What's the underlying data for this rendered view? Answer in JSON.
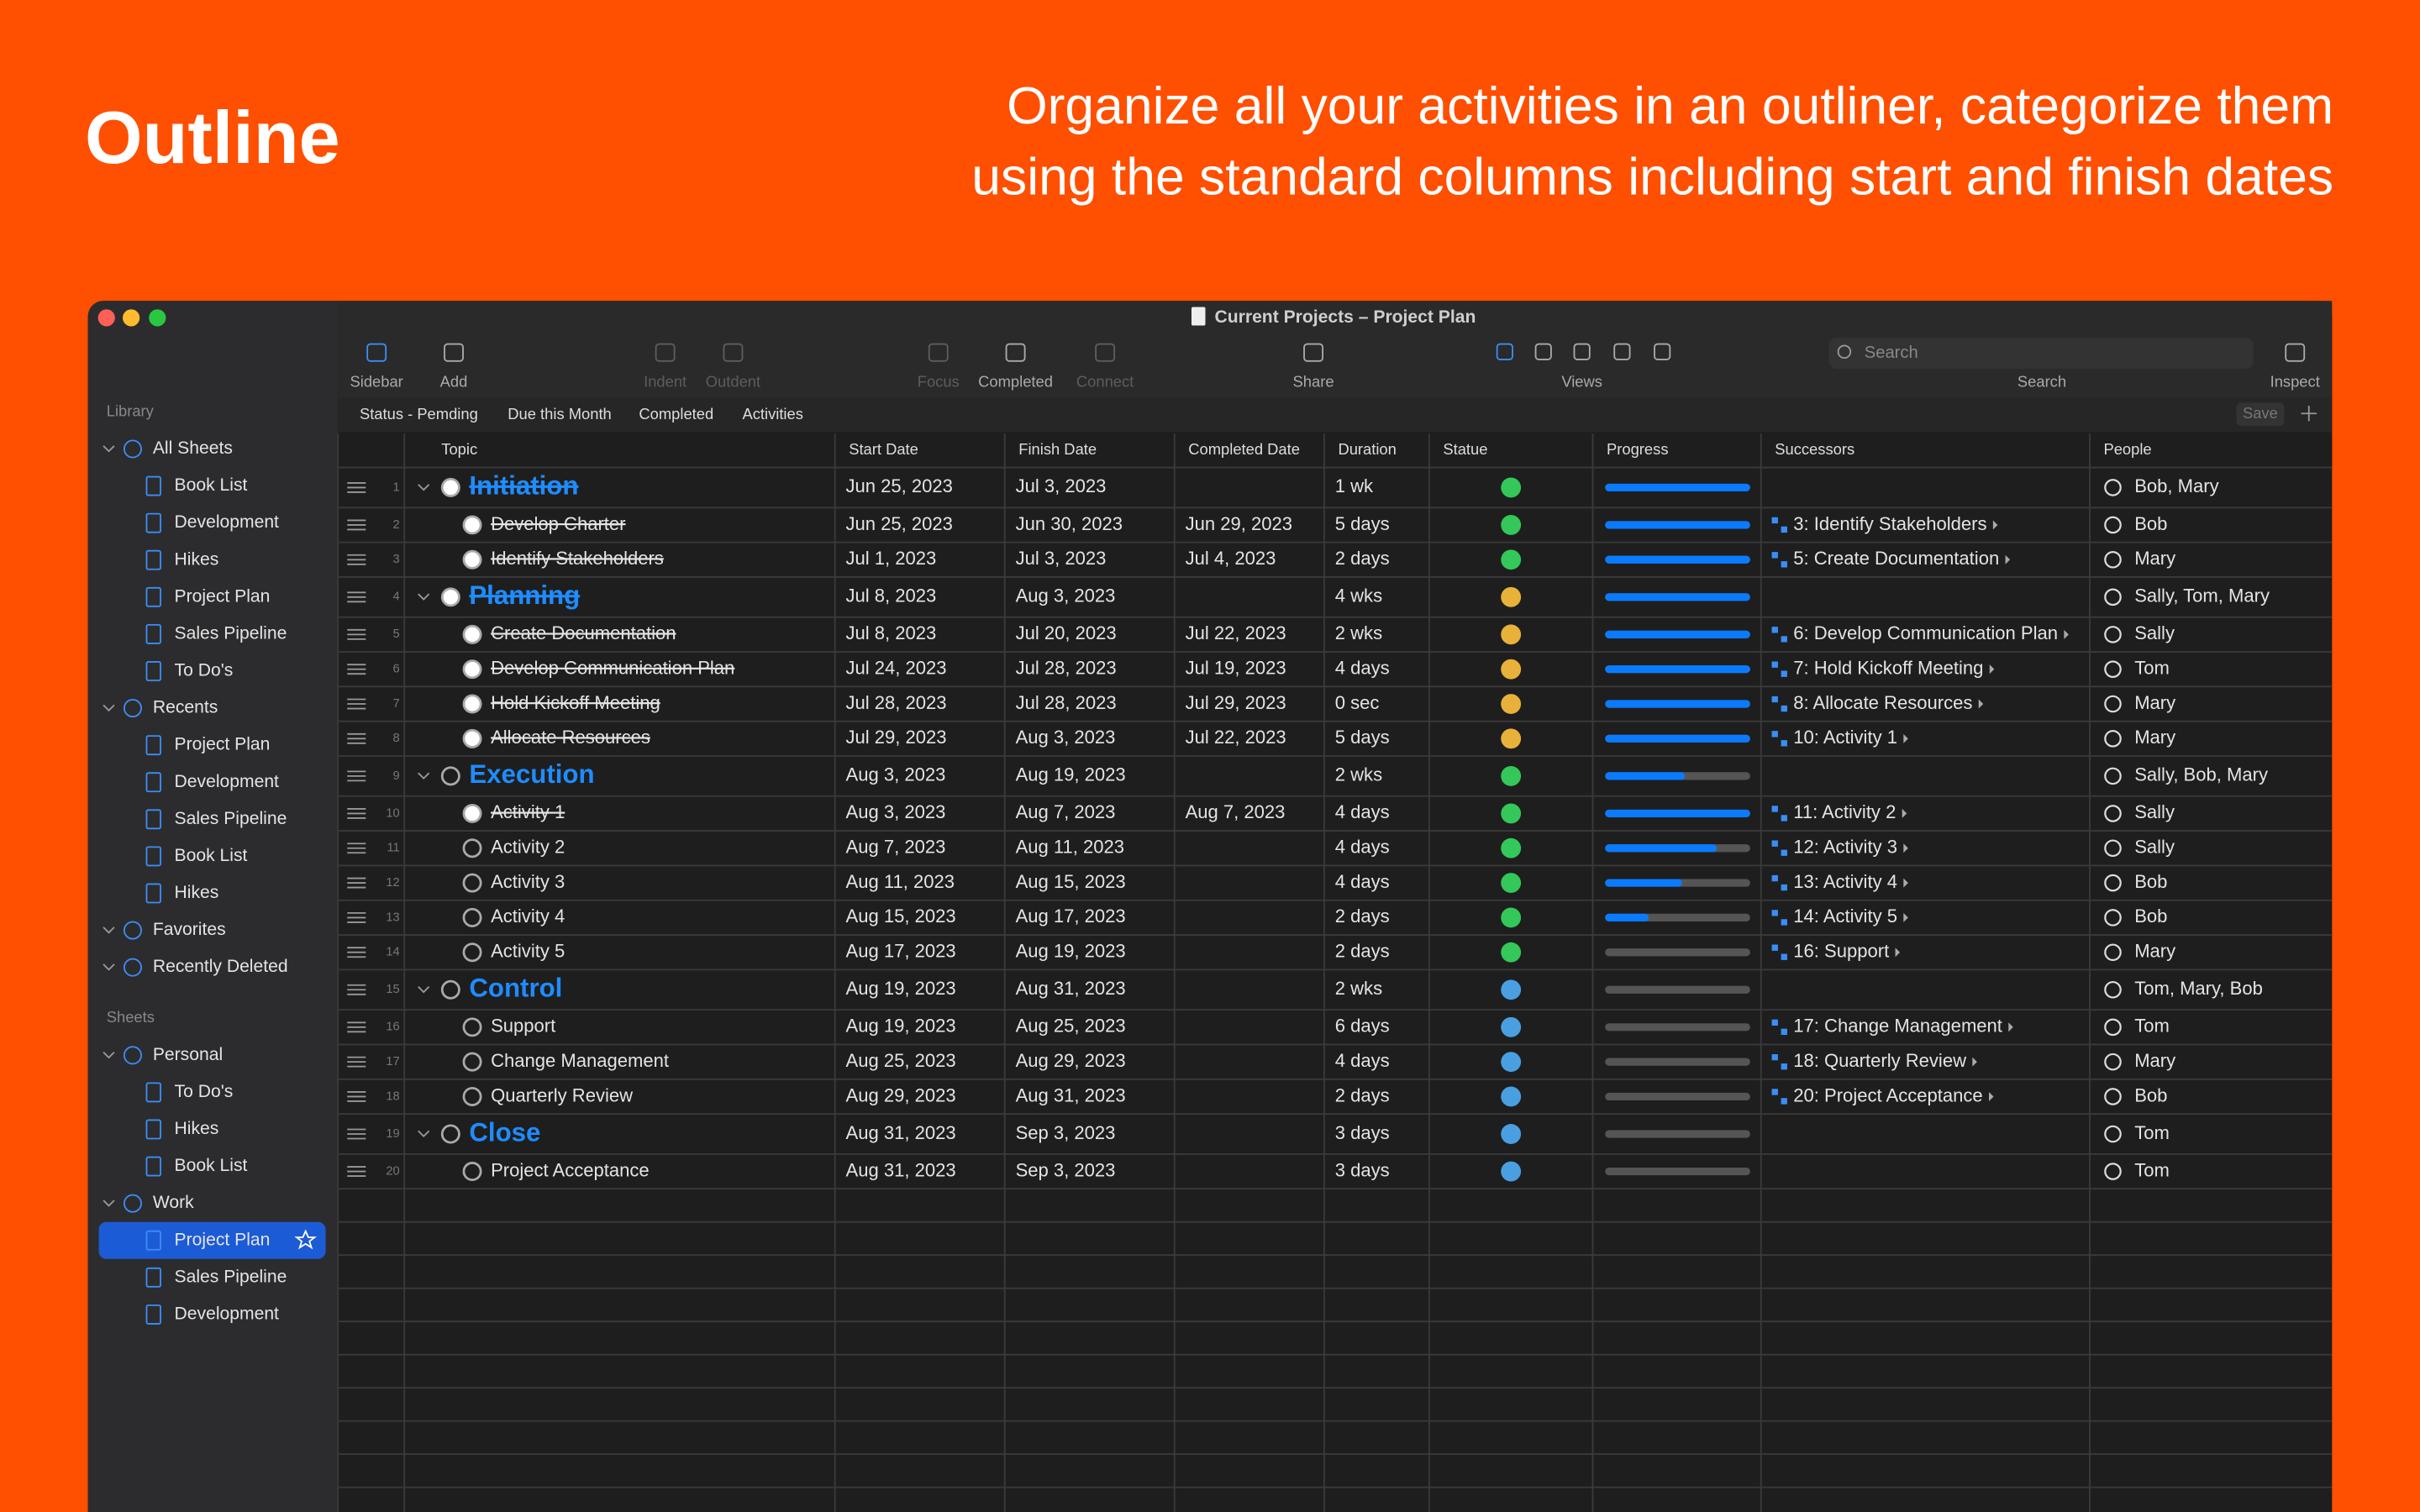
{
  "header": {
    "title": "Outline",
    "tagline": [
      "Organize all your activities in an outliner, categorize them",
      "using the standard columns including start and finish dates"
    ]
  },
  "window": {
    "title": "Current Projects – Project Plan"
  },
  "toolbar": [
    {
      "label": "Sidebar"
    },
    {
      "label": "Add"
    },
    {
      "label": "Indent",
      "disabled": true
    },
    {
      "label": "Outdent",
      "disabled": true
    },
    {
      "label": "Focus",
      "disabled": true
    },
    {
      "label": "Completed"
    },
    {
      "label": "Connect",
      "disabled": true
    },
    {
      "label": "Share"
    },
    {
      "label": "Views"
    },
    {
      "label": "Search"
    },
    {
      "label": "Inspect"
    }
  ],
  "search_placeholder": "Search",
  "filters": [
    "Status - Pemding",
    "Due this Month",
    "Completed",
    "Activities"
  ],
  "save": "Save",
  "sidebar": {
    "library": {
      "label": "Library",
      "groups": [
        {
          "label": "All Sheets",
          "items": [
            "Book List",
            "Development",
            "Hikes",
            "Project Plan",
            "Sales Pipeline",
            "To Do's"
          ]
        },
        {
          "label": "Recents",
          "items": [
            "Project Plan",
            "Development",
            "Sales Pipeline",
            "Book List",
            "Hikes"
          ]
        },
        {
          "label": "Favorites",
          "items": []
        },
        {
          "label": "Recently Deleted",
          "items": []
        }
      ]
    },
    "sheets": {
      "label": "Sheets",
      "groups": [
        {
          "label": "Personal",
          "items": [
            "To Do's",
            "Hikes",
            "Book List"
          ]
        },
        {
          "label": "Work",
          "items": [
            "Project Plan",
            "Sales Pipeline",
            "Development"
          ],
          "selected_index": 0
        }
      ]
    }
  },
  "table": {
    "columns": [
      "Topic",
      "Start Date",
      "Finish Date",
      "Completed Date",
      "Duration",
      "Statue",
      "Progress",
      "Successors",
      "People"
    ],
    "rows": [
      {
        "num": 1,
        "group": true,
        "done": true,
        "topic": "Initiation",
        "start": "Jun 25, 2023",
        "finish": "Jul 3, 2023",
        "completed": null,
        "duration": "1 wk",
        "status": "#34c759",
        "progress": 100,
        "successor": null,
        "people": "Bob, Mary"
      },
      {
        "num": 2,
        "done": true,
        "topic": "Develop Charter",
        "start": "Jun 25, 2023",
        "finish": "Jun 30, 2023",
        "completed": "Jun 29, 2023",
        "duration": "5 days",
        "status": "#34c759",
        "progress": 100,
        "successor": "3: Identify Stakeholders",
        "people": "Bob"
      },
      {
        "num": 3,
        "done": true,
        "topic": "Identify Stakeholders",
        "start": "Jul 1, 2023",
        "finish": "Jul 3, 2023",
        "completed": "Jul 4, 2023",
        "duration": "2 days",
        "status": "#34c759",
        "progress": 100,
        "successor": "5: Create Documentation",
        "people": "Mary"
      },
      {
        "num": 4,
        "group": true,
        "done": true,
        "topic": "Planning",
        "start": "Jul 8, 2023",
        "finish": "Aug 3, 2023",
        "completed": null,
        "duration": "4 wks",
        "status": "#e8b23a",
        "progress": 100,
        "successor": null,
        "people": "Sally, Tom, Mary"
      },
      {
        "num": 5,
        "done": true,
        "topic": "Create Documentation",
        "start": "Jul 8, 2023",
        "finish": "Jul 20, 2023",
        "completed": "Jul 22, 2023",
        "duration": "2 wks",
        "status": "#e8b23a",
        "progress": 100,
        "successor": "6: Develop Communication Plan",
        "people": "Sally"
      },
      {
        "num": 6,
        "done": true,
        "topic": "Develop Communication Plan",
        "start": "Jul 24, 2023",
        "finish": "Jul 28, 2023",
        "completed": "Jul 19, 2023",
        "duration": "4 days",
        "status": "#e8b23a",
        "progress": 100,
        "successor": "7: Hold Kickoff Meeting",
        "people": "Tom"
      },
      {
        "num": 7,
        "done": true,
        "topic": "Hold Kickoff Meeting",
        "start": "Jul 28, 2023",
        "finish": "Jul 28, 2023",
        "completed": "Jul 29, 2023",
        "duration": "0 sec",
        "status": "#e8b23a",
        "progress": 100,
        "successor": "8: Allocate Resources",
        "people": "Mary"
      },
      {
        "num": 8,
        "done": true,
        "topic": "Allocate Resources",
        "start": "Jul 29, 2023",
        "finish": "Aug 3, 2023",
        "completed": "Jul 22, 2023",
        "duration": "5 days",
        "status": "#e8b23a",
        "progress": 100,
        "successor": "10: Activity 1",
        "people": "Mary"
      },
      {
        "num": 9,
        "group": true,
        "topic": "Execution",
        "start": "Aug 3, 2023",
        "finish": "Aug 19, 2023",
        "completed": null,
        "duration": "2 wks",
        "status": "#34c759",
        "progress": 55,
        "successor": null,
        "people": "Sally, Bob, Mary"
      },
      {
        "num": 10,
        "done": true,
        "topic": "Activity 1",
        "start": "Aug 3, 2023",
        "finish": "Aug 7, 2023",
        "completed": "Aug 7, 2023",
        "duration": "4 days",
        "status": "#34c759",
        "progress": 100,
        "successor": "11: Activity 2",
        "people": "Sally"
      },
      {
        "num": 11,
        "topic": "Activity 2",
        "start": "Aug 7, 2023",
        "finish": "Aug 11, 2023",
        "completed": null,
        "duration": "4 days",
        "status": "#34c759",
        "progress": 77,
        "successor": "12: Activity 3",
        "people": "Sally"
      },
      {
        "num": 12,
        "topic": "Activity 3",
        "start": "Aug 11, 2023",
        "finish": "Aug 15, 2023",
        "completed": null,
        "duration": "4 days",
        "status": "#34c759",
        "progress": 53,
        "successor": "13: Activity 4",
        "people": "Bob"
      },
      {
        "num": 13,
        "topic": "Activity 4",
        "start": "Aug 15, 2023",
        "finish": "Aug 17, 2023",
        "completed": null,
        "duration": "2 days",
        "status": "#34c759",
        "progress": 30,
        "successor": "14: Activity 5",
        "people": "Bob"
      },
      {
        "num": 14,
        "topic": "Activity 5",
        "start": "Aug 17, 2023",
        "finish": "Aug 19, 2023",
        "completed": null,
        "duration": "2 days",
        "status": "#34c759",
        "progress": 0,
        "successor": "16: Support",
        "people": "Mary"
      },
      {
        "num": 15,
        "group": true,
        "topic": "Control",
        "start": "Aug 19, 2023",
        "finish": "Aug 31, 2023",
        "completed": null,
        "duration": "2 wks",
        "status": "#4a9fe0",
        "progress": 0,
        "successor": null,
        "people": "Tom, Mary, Bob"
      },
      {
        "num": 16,
        "topic": "Support",
        "start": "Aug 19, 2023",
        "finish": "Aug 25, 2023",
        "completed": null,
        "duration": "6 days",
        "status": "#4a9fe0",
        "progress": 0,
        "successor": "17: Change Management",
        "people": "Tom"
      },
      {
        "num": 17,
        "topic": "Change Management",
        "start": "Aug 25, 2023",
        "finish": "Aug 29, 2023",
        "completed": null,
        "duration": "4 days",
        "status": "#4a9fe0",
        "progress": 0,
        "successor": "18: Quarterly Review",
        "people": "Mary"
      },
      {
        "num": 18,
        "topic": "Quarterly Review",
        "start": "Aug 29, 2023",
        "finish": "Aug 31, 2023",
        "completed": null,
        "duration": "2 days",
        "status": "#4a9fe0",
        "progress": 0,
        "successor": "20: Project Acceptance",
        "people": "Bob"
      },
      {
        "num": 19,
        "group": true,
        "topic": "Close",
        "start": "Aug 31, 2023",
        "finish": "Sep 3, 2023",
        "completed": null,
        "duration": "3 days",
        "status": "#4a9fe0",
        "progress": 0,
        "successor": null,
        "people": "Tom"
      },
      {
        "num": 20,
        "topic": "Project Acceptance",
        "start": "Aug 31, 2023",
        "finish": "Sep 3, 2023",
        "completed": null,
        "duration": "3 days",
        "status": "#4a9fe0",
        "progress": 0,
        "successor": null,
        "people": "Tom"
      }
    ]
  }
}
